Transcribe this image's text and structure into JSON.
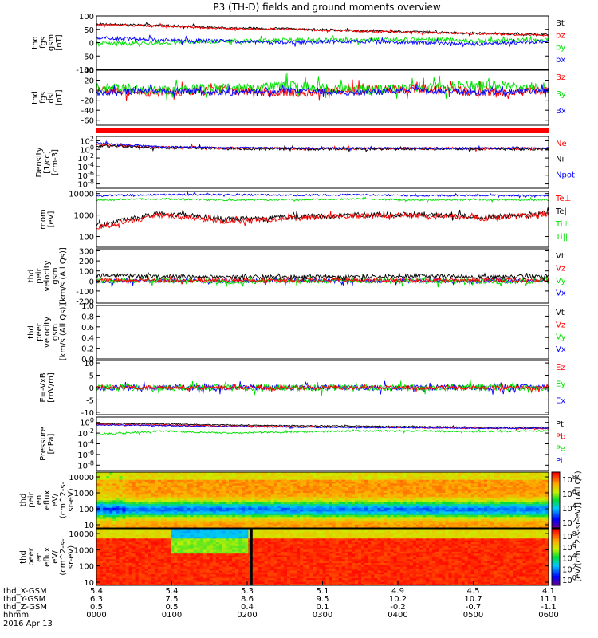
{
  "title": "P3 (TH-D) fields and ground moments overview",
  "colors": {
    "black": "#000000",
    "red": "#ff0000",
    "green": "#00e000",
    "blue": "#0000ff"
  },
  "chart_data": [
    {
      "type": "line",
      "name": "fgs_gsm",
      "ylabel_lines": [
        "thd",
        "fgs",
        "gsm",
        "[nT]"
      ],
      "yticks": [
        "100",
        "50",
        "0",
        "-50",
        "-100"
      ],
      "ylim": [
        -100,
        100
      ],
      "legend": [
        {
          "label": "Bt",
          "color": "black"
        },
        {
          "label": "bz",
          "color": "red"
        },
        {
          "label": "by",
          "color": "green"
        },
        {
          "label": "bx",
          "color": "blue"
        }
      ],
      "series_approx": [
        {
          "name": "Bt",
          "color": "black",
          "levels": [
            70,
            65,
            55,
            52,
            45,
            40,
            35,
            30
          ],
          "noise": 4
        },
        {
          "name": "bz",
          "color": "red",
          "levels": [
            68,
            62,
            53,
            50,
            43,
            38,
            33,
            28
          ],
          "noise": 4
        },
        {
          "name": "by",
          "color": "green",
          "levels": [
            -5,
            0,
            5,
            10,
            8,
            12,
            6,
            10
          ],
          "noise": 8
        },
        {
          "name": "bx",
          "color": "blue",
          "levels": [
            20,
            10,
            5,
            0,
            5,
            0,
            -5,
            5
          ],
          "noise": 7
        }
      ]
    },
    {
      "type": "line",
      "name": "fgs_dsl",
      "ylabel_lines": [
        "thd",
        "fgs",
        "dsl",
        "[nT]"
      ],
      "yticks": [
        "40",
        "20",
        "0",
        "-20",
        "-40",
        "-60"
      ],
      "ylim": [
        -70,
        40
      ],
      "legend": [
        {
          "label": "Bz",
          "color": "red"
        },
        {
          "label": "By",
          "color": "green"
        },
        {
          "label": "Bx",
          "color": "blue"
        }
      ],
      "series_approx": [
        {
          "name": "Bz",
          "color": "red",
          "levels": [
            0,
            -5,
            0,
            -5,
            0,
            5,
            -5,
            0
          ],
          "noise": 9
        },
        {
          "name": "By",
          "color": "green",
          "levels": [
            5,
            0,
            5,
            10,
            0,
            5,
            10,
            5
          ],
          "noise": 10
        },
        {
          "name": "Bx",
          "color": "blue",
          "levels": [
            -5,
            0,
            -5,
            0,
            -5,
            0,
            -5,
            0
          ],
          "noise": 6
        }
      ]
    },
    {
      "type": "bar_strip",
      "name": "mode_bar",
      "color": "red"
    },
    {
      "type": "line",
      "name": "density",
      "yscale": "log",
      "ylabel_lines": [
        "Density",
        "[1/cc]",
        "[cm-3]"
      ],
      "yticks": [
        "10^2",
        "10^0",
        "10^-2",
        "10^-4",
        "10^-6",
        "10^-8"
      ],
      "ylim_exp": [
        -9,
        3
      ],
      "legend": [
        {
          "label": "Ne",
          "color": "red"
        },
        {
          "label": "Ni",
          "color": "black"
        },
        {
          "label": "Npot",
          "color": "blue"
        }
      ],
      "series_approx": [
        {
          "name": "Ne",
          "color": "red",
          "levels": [
            1,
            0.5,
            0.3,
            0.2,
            0.2,
            0.25,
            0.2,
            0.2
          ],
          "noise": 0.3
        },
        {
          "name": "Ni",
          "color": "black",
          "levels": [
            0.8,
            0.4,
            0.2,
            0.1,
            0.1,
            0.1,
            0.1,
            0.1
          ],
          "noise": 0.3
        },
        {
          "name": "Npot",
          "color": "blue",
          "levels": [
            1.5,
            0.6,
            0.4,
            0.3,
            0.3,
            0.3,
            0.3,
            0.3
          ],
          "noise": 0.2
        }
      ]
    },
    {
      "type": "line",
      "name": "temperature",
      "yscale": "log",
      "ylabel_lines": [
        "mom",
        "[eV]"
      ],
      "yticks": [
        "10000",
        "1000",
        "100"
      ],
      "ylim_exp": [
        1.5,
        4.1
      ],
      "legend": [
        {
          "label": "Te⊥",
          "color": "red"
        },
        {
          "label": "Te||",
          "color": "black"
        },
        {
          "label": "Ti⊥",
          "color": "green"
        },
        {
          "label": "Ti||",
          "color": "green"
        }
      ],
      "series_approx": [
        {
          "name": "Ti",
          "color": "blue",
          "levels": [
            3.9,
            3.95,
            3.95,
            3.92,
            3.95,
            3.9,
            3.92,
            3.9
          ],
          "noise": 0.04
        },
        {
          "name": "Ti||",
          "color": "green",
          "levels": [
            3.7,
            3.75,
            3.7,
            3.72,
            3.75,
            3.7,
            3.72,
            3.7
          ],
          "noise": 0.04
        },
        {
          "name": "Te||",
          "color": "black",
          "levels": [
            2.5,
            3.1,
            2.8,
            2.9,
            3.0,
            3.05,
            2.9,
            3.1
          ],
          "noise": 0.12
        },
        {
          "name": "Te⊥",
          "color": "red",
          "levels": [
            2.4,
            3.0,
            2.7,
            2.85,
            2.95,
            3.0,
            2.85,
            3.05
          ],
          "noise": 0.12
        }
      ]
    },
    {
      "type": "line",
      "name": "peir_velocity",
      "ylabel_lines": [
        "thd",
        "peir",
        "velocity",
        "gsm",
        "[km/s (All Qs)]"
      ],
      "yticks": [
        "300",
        "200",
        "100",
        "0",
        "-100",
        "-200"
      ],
      "ylim": [
        -220,
        320
      ],
      "legend": [
        {
          "label": "Vt",
          "color": "black"
        },
        {
          "label": "Vz",
          "color": "red"
        },
        {
          "label": "Vy",
          "color": "green"
        },
        {
          "label": "Vx",
          "color": "blue"
        }
      ],
      "series_approx": [
        {
          "name": "Vx",
          "color": "blue",
          "levels": [
            0,
            5,
            0,
            5,
            0,
            5,
            0,
            5
          ],
          "noise": 20
        },
        {
          "name": "Vy",
          "color": "green",
          "levels": [
            0,
            5,
            -5,
            0,
            5,
            0,
            -5,
            0
          ],
          "noise": 25
        },
        {
          "name": "Vz",
          "color": "red",
          "levels": [
            10,
            5,
            10,
            5,
            10,
            5,
            10,
            5
          ],
          "noise": 20
        },
        {
          "name": "Vt",
          "color": "black",
          "levels": [
            60,
            45,
            40,
            40,
            45,
            50,
            40,
            45
          ],
          "noise": 20
        }
      ]
    },
    {
      "type": "line",
      "name": "peer_velocity",
      "ylabel_lines": [
        "thd",
        "peer",
        "velocity",
        "gsm",
        "[km/s (All Qs)]"
      ],
      "yticks": [
        "1.0",
        "0.8",
        "0.6",
        "0.4",
        "0.2",
        "0.0"
      ],
      "ylim": [
        0,
        1
      ],
      "legend": [
        {
          "label": "Vt",
          "color": "black"
        },
        {
          "label": "Vz",
          "color": "red"
        },
        {
          "label": "Vy",
          "color": "green"
        },
        {
          "label": "Vx",
          "color": "blue"
        }
      ],
      "series_approx": []
    },
    {
      "type": "line",
      "name": "efield",
      "ylabel_lines": [
        "E=-VxB",
        "[mV/m]"
      ],
      "yticks": [
        "10",
        "5",
        "0",
        "-5",
        "-10"
      ],
      "ylim": [
        -11,
        11
      ],
      "legend": [
        {
          "label": "Ez",
          "color": "red"
        },
        {
          "label": "Ey",
          "color": "green"
        },
        {
          "label": "Ex",
          "color": "blue"
        }
      ],
      "series_approx": [
        {
          "name": "Ex",
          "color": "blue",
          "levels": [
            0,
            0,
            0,
            0,
            0,
            0,
            0,
            0
          ],
          "noise": 1.2
        },
        {
          "name": "Ey",
          "color": "green",
          "levels": [
            0,
            0,
            0,
            0,
            0,
            0,
            0,
            0
          ],
          "noise": 1.3
        },
        {
          "name": "Ez",
          "color": "red",
          "levels": [
            0,
            0,
            0,
            0,
            0,
            0,
            0,
            0
          ],
          "noise": 0.8
        }
      ]
    },
    {
      "type": "line",
      "name": "pressure",
      "yscale": "log",
      "ylabel_lines": [
        "Pressure",
        "[nPa]"
      ],
      "yticks": [
        "10^0",
        "10^-2",
        "10^-4",
        "10^-6",
        "10^-8"
      ],
      "ylim_exp": [
        -9,
        1
      ],
      "legend": [
        {
          "label": "Pt",
          "color": "black"
        },
        {
          "label": "Pb",
          "color": "red"
        },
        {
          "label": "Pe",
          "color": "green"
        },
        {
          "label": "Pi",
          "color": "blue"
        }
      ],
      "series_approx": [
        {
          "name": "Pt",
          "color": "black",
          "levels": [
            -0.2,
            -0.3,
            -0.5,
            -0.6,
            -0.7,
            -0.8,
            -0.9,
            -0.9
          ],
          "noise": 0.1
        },
        {
          "name": "Pb",
          "color": "red",
          "levels": [
            -0.4,
            -0.5,
            -0.7,
            -0.8,
            -0.9,
            -1.0,
            -1.1,
            -1.2
          ],
          "noise": 0.1
        },
        {
          "name": "Pi",
          "color": "blue",
          "levels": [
            -0.5,
            -0.6,
            -0.8,
            -0.9,
            -1.0,
            -1.0,
            -1.1,
            -1.1
          ],
          "noise": 0.1
        },
        {
          "name": "Pe",
          "color": "green",
          "levels": [
            -2.3,
            -1.6,
            -2.0,
            -1.8,
            -1.6,
            -1.6,
            -1.7,
            -1.6
          ],
          "noise": 0.15
        }
      ]
    },
    {
      "type": "heatmap",
      "name": "peir_eflux",
      "yscale": "log",
      "ylabel_lines": [
        "thd",
        "peir",
        "en",
        "eflux",
        "eV/",
        "(cm^2-s-",
        "sr-eV)"
      ],
      "yticks": [
        "10000",
        "1000",
        "100",
        "10"
      ],
      "ylim_exp": [
        0.8,
        4.3
      ],
      "colorbar_ticks": [
        "10^8",
        "10^6",
        "10^4",
        "10^2"
      ]
    },
    {
      "type": "heatmap",
      "name": "peer_eflux",
      "yscale": "log",
      "ylabel_lines": [
        "thd",
        "peer",
        "en",
        "eflux",
        "eV/",
        "(cm^2-s-",
        "sr-eV)"
      ],
      "yticks": [
        "10000",
        "1000",
        "100",
        "10"
      ],
      "ylim_exp": [
        0.8,
        4.3
      ],
      "colorbar_ticks": [
        "10^8",
        "10^6",
        "10^4",
        "10^2",
        "10^0"
      ]
    }
  ],
  "colorbar_label": "[eV/(cm^2-s-sr-eV)] (All Qs)",
  "xaxis": {
    "row_labels": [
      "thd_X-GSM",
      "thd_Y-GSM",
      "thd_Z-GSM",
      "hhmm",
      "2016 Apr 13"
    ],
    "ticks": [
      {
        "x": "5.4",
        "y": "6.3",
        "z": "0.5",
        "hhmm": "0000"
      },
      {
        "x": "5.4",
        "y": "7.5",
        "z": "0.5",
        "hhmm": "0100"
      },
      {
        "x": "5.3",
        "y": "8.6",
        "z": "0.4",
        "hhmm": "0200"
      },
      {
        "x": "5.1",
        "y": "9.5",
        "z": "0.1",
        "hhmm": "0300"
      },
      {
        "x": "4.9",
        "y": "10.2",
        "z": "-0.2",
        "hhmm": "0400"
      },
      {
        "x": "4.5",
        "y": "10.7",
        "z": "-0.7",
        "hhmm": "0500"
      },
      {
        "x": "4.1",
        "y": "11.1",
        "z": "-1.1",
        "hhmm": "0600"
      }
    ]
  }
}
